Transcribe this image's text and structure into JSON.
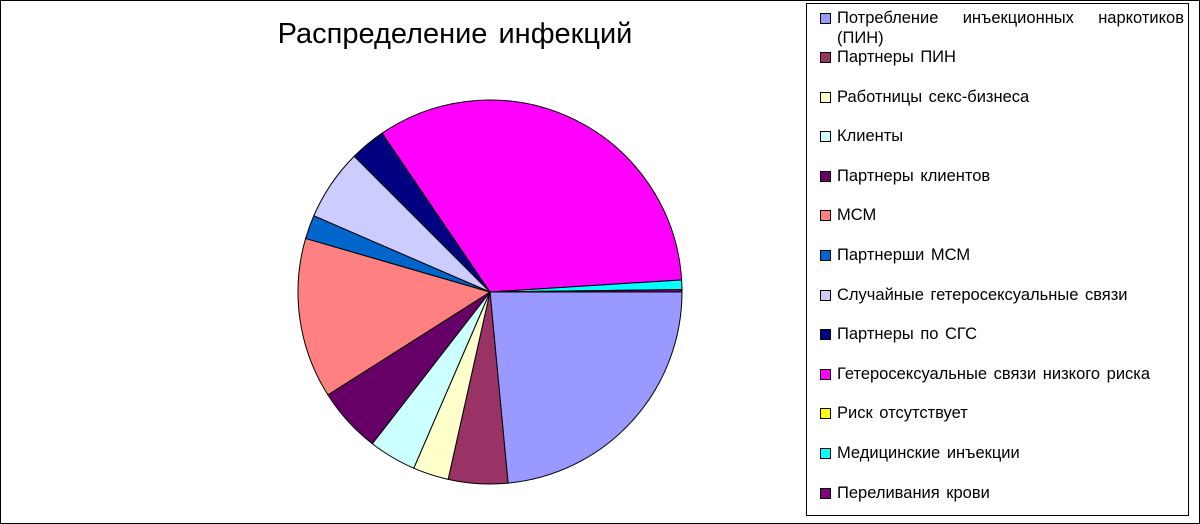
{
  "chart_data": {
    "type": "pie",
    "title": "Распределение  инфекций",
    "legend_position": "right",
    "slices": [
      {
        "label": "Потребление  инъекционных  наркотиков (ПИН)",
        "value": 23.5,
        "color": "#9999ff"
      },
      {
        "label": "Партнеры ПИН",
        "value": 5.0,
        "color": "#993366"
      },
      {
        "label": "Работницы  секс-бизнеса",
        "value": 3.0,
        "color": "#ffffcc"
      },
      {
        "label": "Клиенты",
        "value": 4.0,
        "color": "#ccffff"
      },
      {
        "label": "Партнеры  клиентов",
        "value": 5.5,
        "color": "#660066"
      },
      {
        "label": "МСМ",
        "value": 13.5,
        "color": "#ff8080"
      },
      {
        "label": "Партнерши  МСМ",
        "value": 2.0,
        "color": "#0066cc"
      },
      {
        "label": "Случайные  гетеросексуальные связи",
        "value": 6.0,
        "color": "#ccccff"
      },
      {
        "label": "Партнеры   по СГС",
        "value": 3.0,
        "color": "#000080"
      },
      {
        "label": "Гетеросексуальные связи низкого риска",
        "value": 33.5,
        "color": "#ff00ff"
      },
      {
        "label": "Риск отсутствует",
        "value": 0.0,
        "color": "#ffff00"
      },
      {
        "label": "Медицинские  инъекции",
        "value": 0.8,
        "color": "#00ffff"
      },
      {
        "label": "Переливания  крови",
        "value": 0.2,
        "color": "#800080"
      }
    ]
  }
}
